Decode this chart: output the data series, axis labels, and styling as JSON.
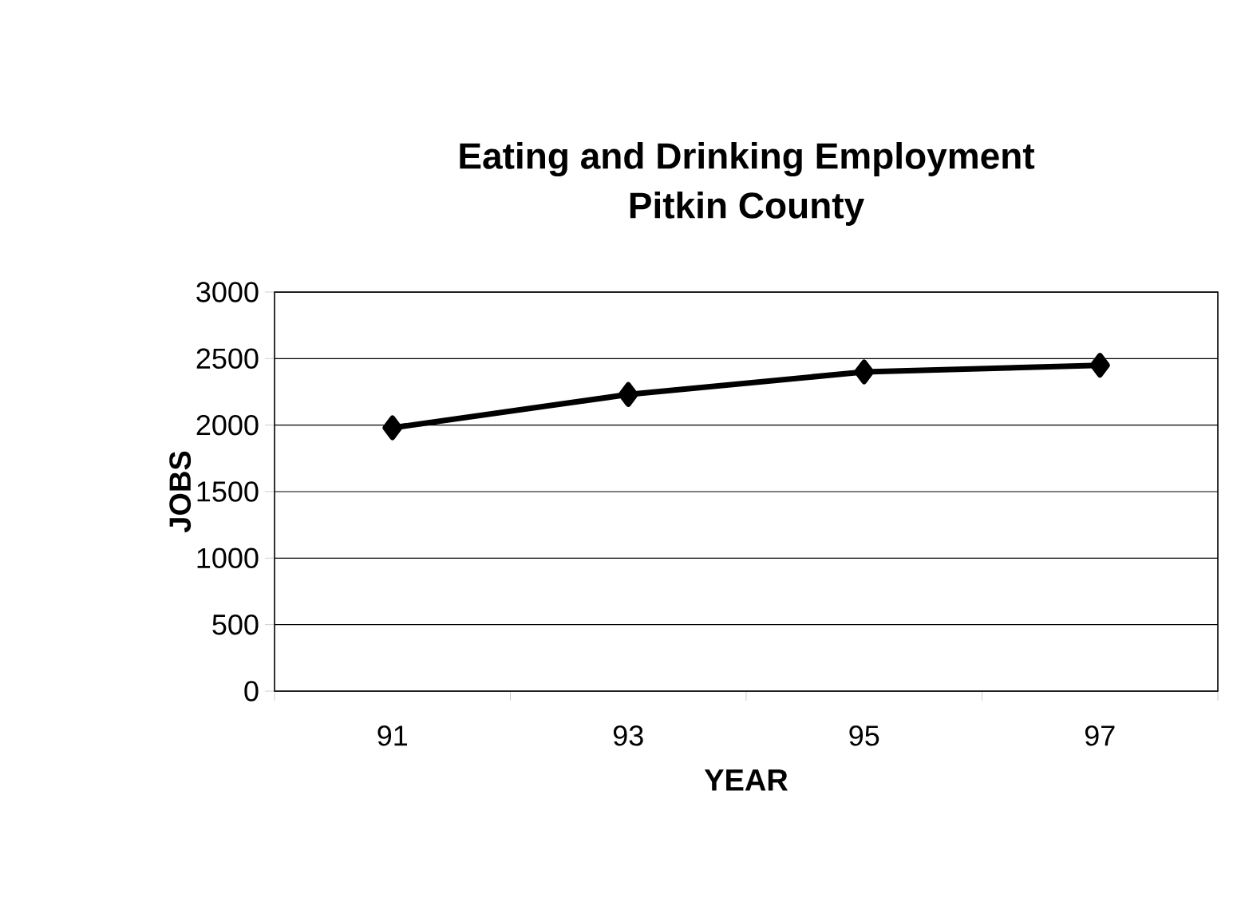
{
  "chart_data": {
    "type": "line",
    "title": "Eating and Drinking Employment",
    "subtitle": "Pitkin County",
    "xlabel": "YEAR",
    "ylabel": "JOBS",
    "categories": [
      "91",
      "93",
      "95",
      "97"
    ],
    "series": [
      {
        "color": "#000000",
        "values": [
          1980,
          2230,
          2400,
          2450
        ]
      }
    ],
    "ylim": [
      0,
      3000
    ],
    "yticks": [
      0,
      500,
      1000,
      1500,
      2000,
      2500,
      3000
    ],
    "grid": "y",
    "marker": "diamond",
    "line_style": "solid"
  }
}
